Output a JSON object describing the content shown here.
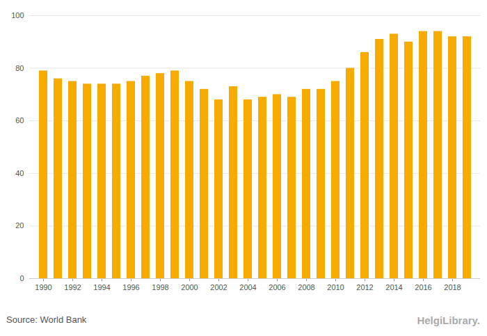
{
  "chart_data": {
    "type": "bar",
    "categories": [
      "1990",
      null,
      "1992",
      null,
      "1994",
      null,
      "1996",
      null,
      "1998",
      null,
      "2000",
      null,
      "2002",
      null,
      "2004",
      null,
      "2006",
      null,
      "2008",
      null,
      "2010",
      null,
      "2012",
      null,
      "2014",
      null,
      "2016",
      null,
      "2018",
      null
    ],
    "values": [
      79,
      76,
      75,
      74,
      74,
      74,
      75,
      77,
      78,
      79,
      75,
      72,
      68,
      73,
      68,
      69,
      70,
      69,
      72,
      72,
      75,
      80,
      86,
      91,
      93,
      90,
      94,
      94,
      92,
      92
    ],
    "color": "#f7ab00",
    "ylim": [
      0,
      100
    ],
    "yticks": [
      0,
      20,
      40,
      60,
      80,
      100
    ],
    "grid": true,
    "source": "Source: World Bank",
    "watermark": "HelgiLibrary."
  }
}
